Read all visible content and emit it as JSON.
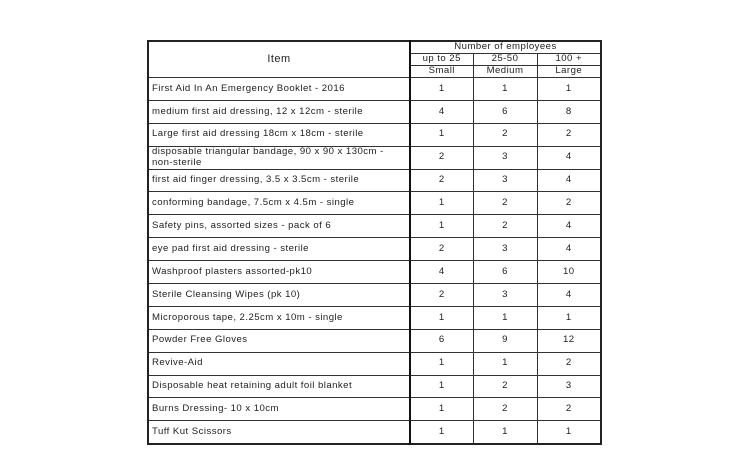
{
  "table": {
    "item_header": "Item",
    "group_header": "Number of employees",
    "columns": [
      {
        "range": "up to 25",
        "size": "Small"
      },
      {
        "range": "25-50",
        "size": "Medium"
      },
      {
        "range": "100 +",
        "size": "Large"
      }
    ],
    "rows": [
      {
        "item": "First Aid In An Emergency Booklet - 2016",
        "values": [
          "1",
          "1",
          "1"
        ]
      },
      {
        "item": "medium first aid dressing, 12 x 12cm - sterile",
        "values": [
          "4",
          "6",
          "8"
        ]
      },
      {
        "item": "Large first aid dressing 18cm x 18cm - sterile",
        "values": [
          "1",
          "2",
          "2"
        ]
      },
      {
        "item": "disposable triangular bandage, 90 x 90 x 130cm - non-sterile",
        "values": [
          "2",
          "3",
          "4"
        ]
      },
      {
        "item": "first aid finger dressing, 3.5 x 3.5cm - sterile",
        "values": [
          "2",
          "3",
          "4"
        ]
      },
      {
        "item": "conforming bandage, 7.5cm x 4.5m - single",
        "values": [
          "1",
          "2",
          "2"
        ]
      },
      {
        "item": "Safety pins, assorted sizes - pack of 6",
        "values": [
          "1",
          "2",
          "4"
        ]
      },
      {
        "item": "eye pad first aid dressing - sterile",
        "values": [
          "2",
          "3",
          "4"
        ]
      },
      {
        "item": "Washproof plasters assorted-pk10",
        "values": [
          "4",
          "6",
          "10"
        ]
      },
      {
        "item": "Sterile Cleansing Wipes (pk 10)",
        "values": [
          "2",
          "3",
          "4"
        ]
      },
      {
        "item": "Microporous tape, 2.25cm x 10m - single",
        "values": [
          "1",
          "1",
          "1"
        ]
      },
      {
        "item": "Powder Free Gloves",
        "values": [
          "6",
          "9",
          "12"
        ]
      },
      {
        "item": "Revive-Aid",
        "values": [
          "1",
          "1",
          "2"
        ]
      },
      {
        "item": "Disposable heat retaining adult foil blanket",
        "values": [
          "1",
          "2",
          "3"
        ]
      },
      {
        "item": "Burns Dressing- 10 x 10cm",
        "values": [
          "1",
          "2",
          "2"
        ]
      },
      {
        "item": "Tuff Kut Scissors",
        "values": [
          "1",
          "1",
          "1"
        ]
      }
    ]
  }
}
